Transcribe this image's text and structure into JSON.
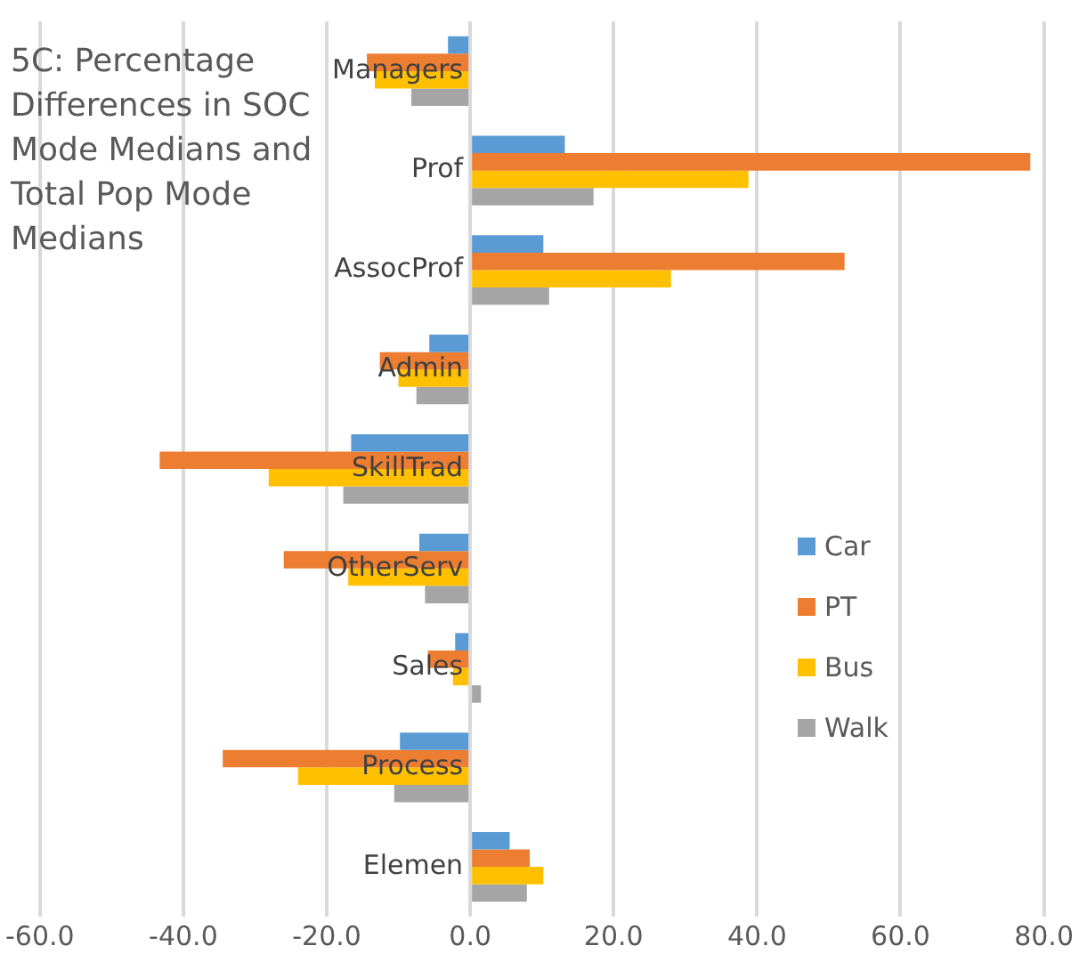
{
  "chart_data": {
    "type": "bar",
    "orientation": "horizontal",
    "title": "5C: Percentage Differences in SOC Mode Medians and Total Pop Mode Medians",
    "categories": [
      "Managers",
      "Prof",
      "AssocProf",
      "Admin",
      "SkillTrad",
      "OtherServ",
      "Sales",
      "Process",
      "Elemen"
    ],
    "series": [
      {
        "name": "Car",
        "color": "#5b9bd5",
        "values": [
          -3.1,
          13.2,
          10.2,
          -5.7,
          -16.6,
          -7.1,
          -2.1,
          -9.8,
          5.5
        ]
      },
      {
        "name": "PT",
        "color": "#ed7d31",
        "values": [
          -14.4,
          78.1,
          52.2,
          -12.6,
          -43.3,
          -26.0,
          -5.9,
          -34.5,
          8.3
        ]
      },
      {
        "name": "Bus",
        "color": "#ffc000",
        "values": [
          -13.3,
          38.8,
          28.0,
          -10.0,
          -28.1,
          -17.0,
          -2.4,
          -24.0,
          10.2
        ]
      },
      {
        "name": "Walk",
        "color": "#a5a5a5",
        "values": [
          -8.2,
          17.2,
          11.0,
          -7.5,
          -17.7,
          -6.3,
          1.5,
          -10.6,
          7.9
        ]
      }
    ],
    "xlim": [
      -60,
      80
    ],
    "xticks": [
      {
        "value": -60,
        "label": "-60.0"
      },
      {
        "value": -40,
        "label": "-40.0"
      },
      {
        "value": -20,
        "label": "-20.0"
      },
      {
        "value": 0,
        "label": "0.0"
      },
      {
        "value": 20,
        "label": "20.0"
      },
      {
        "value": 40,
        "label": "40.0"
      },
      {
        "value": 60,
        "label": "60.0"
      },
      {
        "value": 80,
        "label": "80.0"
      }
    ],
    "grid": "x",
    "legend": "right"
  }
}
